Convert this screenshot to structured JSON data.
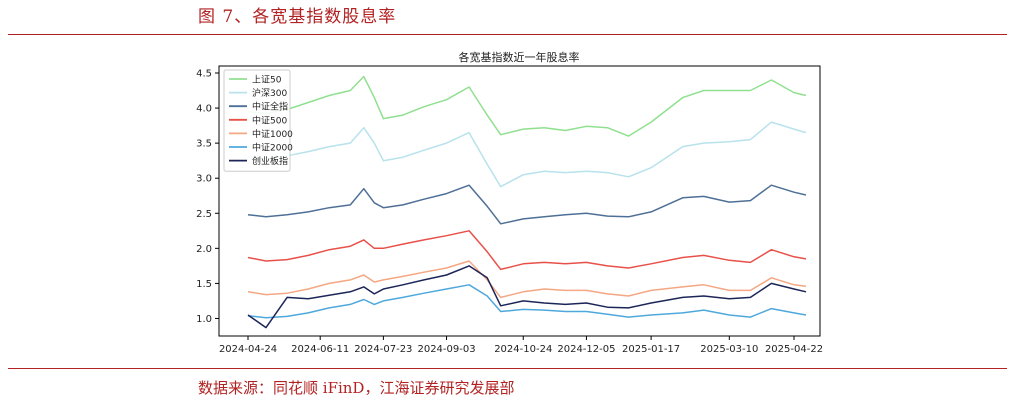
{
  "header": {
    "figure_title": "图 7、各宽基指数股息率"
  },
  "footer": {
    "source": "数据来源：同花顺 iFinD，江海证券研究发展部"
  },
  "chart_data": {
    "type": "line",
    "title": "各宽基指数近一年股息率",
    "xlabel": "",
    "ylabel": "",
    "ylim": [
      0.75,
      4.6
    ],
    "y_ticks": [
      1.0,
      1.5,
      2.0,
      2.5,
      3.0,
      3.5,
      4.0,
      4.5
    ],
    "x_ticks": [
      "2024-04-24",
      "2024-06-11",
      "2024-07-23",
      "2024-09-03",
      "2024-10-24",
      "2024-12-05",
      "2025-01-17",
      "2025-03-10",
      "2025-04-22"
    ],
    "grid": false,
    "legend_position": "top-left",
    "x_dates": [
      "2024-04-24",
      "2024-05-06",
      "2024-05-20",
      "2024-06-03",
      "2024-06-17",
      "2024-07-01",
      "2024-07-10",
      "2024-07-17",
      "2024-07-23",
      "2024-08-05",
      "2024-08-19",
      "2024-09-03",
      "2024-09-18",
      "2024-09-30",
      "2024-10-09",
      "2024-10-24",
      "2024-11-07",
      "2024-11-21",
      "2024-12-05",
      "2024-12-19",
      "2025-01-02",
      "2025-01-17",
      "2025-02-07",
      "2025-02-21",
      "2025-03-10",
      "2025-03-24",
      "2025-04-07",
      "2025-04-22",
      "2025-04-30"
    ],
    "series": [
      {
        "name": "上证50",
        "color": "#90e090",
        "values": [
          3.95,
          3.92,
          3.98,
          4.08,
          4.18,
          4.25,
          4.45,
          4.15,
          3.85,
          3.9,
          4.02,
          4.12,
          4.3,
          3.9,
          3.62,
          3.7,
          3.72,
          3.68,
          3.74,
          3.72,
          3.6,
          3.8,
          4.15,
          4.25,
          4.25,
          4.25,
          4.4,
          4.22,
          4.18
        ]
      },
      {
        "name": "沪深300",
        "color": "#b8e2ec",
        "values": [
          3.3,
          3.28,
          3.32,
          3.38,
          3.45,
          3.5,
          3.72,
          3.5,
          3.25,
          3.3,
          3.4,
          3.5,
          3.65,
          3.2,
          2.88,
          3.05,
          3.1,
          3.08,
          3.1,
          3.08,
          3.02,
          3.15,
          3.45,
          3.5,
          3.52,
          3.55,
          3.8,
          3.7,
          3.65
        ]
      },
      {
        "name": "中证全指",
        "color": "#4e6f96",
        "values": [
          2.48,
          2.45,
          2.48,
          2.52,
          2.58,
          2.62,
          2.85,
          2.65,
          2.58,
          2.62,
          2.7,
          2.78,
          2.9,
          2.6,
          2.35,
          2.42,
          2.45,
          2.48,
          2.5,
          2.46,
          2.45,
          2.52,
          2.72,
          2.74,
          2.66,
          2.68,
          2.9,
          2.8,
          2.76
        ]
      },
      {
        "name": "中证500",
        "color": "#e8504a",
        "values": [
          1.87,
          1.82,
          1.84,
          1.9,
          1.98,
          2.03,
          2.12,
          2.0,
          2.0,
          2.06,
          2.12,
          2.18,
          2.25,
          1.95,
          1.7,
          1.78,
          1.8,
          1.78,
          1.8,
          1.75,
          1.72,
          1.78,
          1.87,
          1.9,
          1.83,
          1.8,
          1.98,
          1.88,
          1.85
        ]
      },
      {
        "name": "中证1000",
        "color": "#f4a782",
        "values": [
          1.38,
          1.34,
          1.36,
          1.42,
          1.5,
          1.55,
          1.62,
          1.52,
          1.55,
          1.6,
          1.66,
          1.72,
          1.82,
          1.55,
          1.3,
          1.38,
          1.42,
          1.4,
          1.4,
          1.35,
          1.32,
          1.4,
          1.45,
          1.48,
          1.4,
          1.4,
          1.58,
          1.48,
          1.46
        ]
      },
      {
        "name": "中证2000",
        "color": "#4fa8dc",
        "values": [
          1.04,
          1.01,
          1.03,
          1.08,
          1.15,
          1.2,
          1.27,
          1.2,
          1.25,
          1.3,
          1.36,
          1.42,
          1.48,
          1.32,
          1.1,
          1.13,
          1.12,
          1.1,
          1.1,
          1.06,
          1.02,
          1.05,
          1.08,
          1.12,
          1.05,
          1.02,
          1.14,
          1.08,
          1.05
        ]
      },
      {
        "name": "创业板指",
        "color": "#1c2557",
        "values": [
          1.05,
          0.87,
          1.3,
          1.28,
          1.33,
          1.38,
          1.45,
          1.35,
          1.42,
          1.48,
          1.55,
          1.62,
          1.75,
          1.58,
          1.18,
          1.25,
          1.22,
          1.2,
          1.22,
          1.16,
          1.15,
          1.22,
          1.3,
          1.32,
          1.28,
          1.3,
          1.5,
          1.42,
          1.38
        ]
      }
    ]
  }
}
